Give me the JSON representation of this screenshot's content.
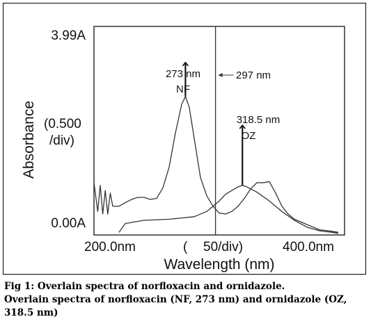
{
  "chart_data": {
    "type": "line",
    "ylabel": "Absorbance",
    "xlabel": "Wavelength (nm)",
    "y_top_label": "3.99A",
    "y_bottom_label": "0.00A",
    "y_scale_label_1": "(0.500",
    "y_scale_label_2": "/div)",
    "x_left_label": "200.0nm",
    "x_right_label": "400.0nm",
    "x_scale_label_open": "(",
    "x_scale_label": "50/div)",
    "xlim": [
      200,
      400
    ],
    "ylim": [
      0,
      3.99
    ],
    "grid": false,
    "series": [
      {
        "name": "NF",
        "x": [
          200,
          203,
          205,
          207,
          209,
          211,
          213,
          215,
          220,
          225,
          230,
          235,
          240,
          245,
          250,
          255,
          260,
          265,
          270,
          273,
          276,
          280,
          285,
          290,
          295,
          300,
          305,
          310,
          315,
          320,
          325,
          330,
          335,
          340,
          345,
          350,
          355,
          360,
          370,
          380,
          390,
          395
        ],
        "y": [
          1.0,
          0.45,
          0.95,
          0.4,
          0.85,
          0.4,
          0.8,
          0.55,
          0.55,
          0.62,
          0.68,
          0.72,
          0.72,
          0.68,
          0.7,
          0.9,
          1.3,
          1.95,
          2.5,
          2.65,
          2.45,
          1.85,
          1.1,
          0.75,
          0.55,
          0.42,
          0.4,
          0.45,
          0.55,
          0.7,
          0.88,
          1.0,
          1.0,
          1.02,
          0.8,
          0.55,
          0.4,
          0.3,
          0.2,
          0.1,
          0.07,
          0.05
        ]
      },
      {
        "name": "OZ",
        "x": [
          220,
          225,
          240,
          260,
          280,
          290,
          300,
          305,
          310,
          315,
          318.5,
          322,
          330,
          340,
          350,
          360,
          370,
          380,
          390,
          395
        ],
        "y": [
          0.05,
          0.22,
          0.28,
          0.3,
          0.35,
          0.45,
          0.65,
          0.78,
          0.85,
          0.92,
          0.95,
          0.92,
          0.82,
          0.65,
          0.45,
          0.28,
          0.15,
          0.08,
          0.05,
          0.03
        ]
      }
    ],
    "annotations": [
      {
        "text_1": "273 nm",
        "text_2": "NF",
        "x": 273,
        "y": 2.65,
        "y_top": 3.3
      },
      {
        "text_1": "318.5 nm",
        "text_2": "OZ",
        "x": 318.5,
        "y": 0.95,
        "y_top": 2.1
      },
      {
        "text": "297 nm",
        "x": 297
      }
    ]
  },
  "caption": {
    "line1": "Fig 1: Overlain spectra of norfloxacin and ornidazole.",
    "line2": "Overlain spectra of norfloxacin (NF, 273 nm) and ornidazole (OZ,",
    "line3": "318.5 nm)"
  }
}
